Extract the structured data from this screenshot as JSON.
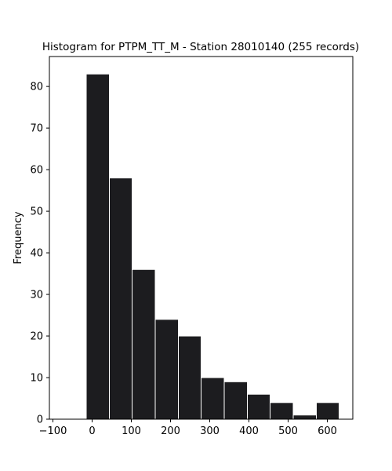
{
  "chart_data": {
    "type": "bar",
    "title": "Histogram for PTPM_TT_M - Station 28010140 (255 records)",
    "xlabel": "",
    "ylabel": "Frequency",
    "xlim": [
      -109,
      665
    ],
    "ylim": [
      0,
      87.2
    ],
    "x_ticks": [
      -100,
      0,
      100,
      200,
      300,
      400,
      500,
      600
    ],
    "y_ticks": [
      0,
      10,
      20,
      30,
      40,
      50,
      60,
      70,
      80
    ],
    "bins": [
      {
        "start": -15,
        "end": 44,
        "count": 83
      },
      {
        "start": 44,
        "end": 102,
        "count": 58
      },
      {
        "start": 102,
        "end": 161,
        "count": 36
      },
      {
        "start": 161,
        "end": 220,
        "count": 24
      },
      {
        "start": 220,
        "end": 278,
        "count": 20
      },
      {
        "start": 278,
        "end": 337,
        "count": 10
      },
      {
        "start": 337,
        "end": 396,
        "count": 9
      },
      {
        "start": 396,
        "end": 454,
        "count": 6
      },
      {
        "start": 454,
        "end": 513,
        "count": 4
      },
      {
        "start": 513,
        "end": 572,
        "count": 1
      },
      {
        "start": 572,
        "end": 630,
        "count": 4
      }
    ],
    "bar_color": "#1c1c1f",
    "edge_color": "#ffffff",
    "grid": false,
    "legend": false
  }
}
